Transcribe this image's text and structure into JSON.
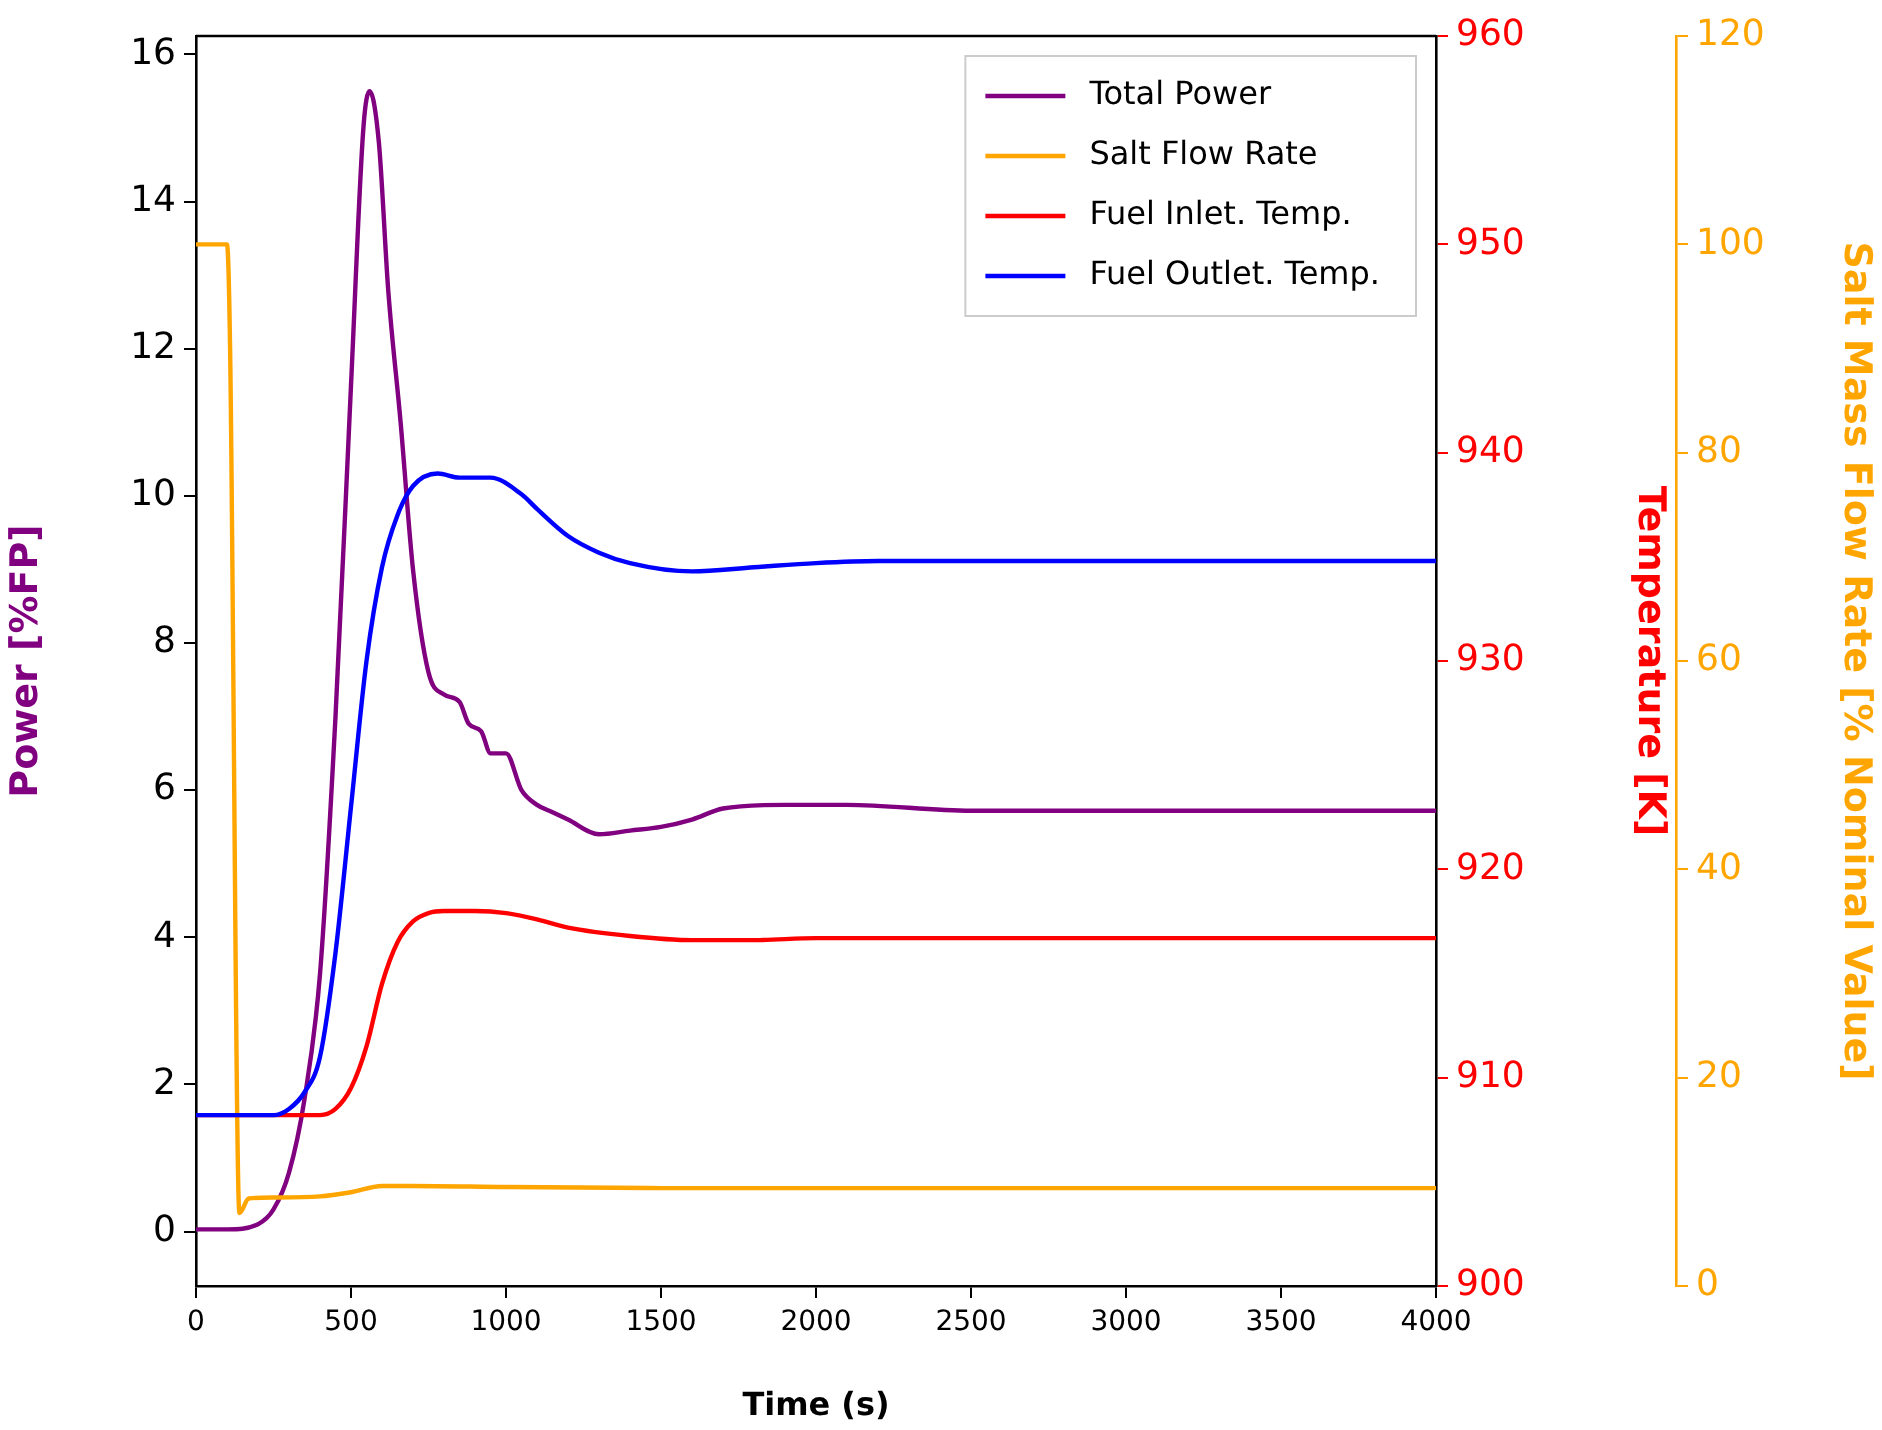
{
  "chart_data": {
    "type": "line",
    "xlabel": "Time (s)",
    "ylabel": "Power [%FP]",
    "y2label": "Temperature [K]",
    "y3label": "Salt Mass Flow Rate [% Nominal Value]",
    "xlim": [
      0,
      4000
    ],
    "xticks": [
      0,
      500,
      1000,
      1500,
      2000,
      2500,
      3000,
      3500,
      4000
    ],
    "ylim": [
      -0.74,
      16.25
    ],
    "yticks": [
      0,
      2,
      4,
      6,
      8,
      10,
      12,
      14,
      16
    ],
    "y2lim": [
      900,
      960
    ],
    "y2ticks": [
      900,
      910,
      920,
      930,
      940,
      950,
      960
    ],
    "y3lim": [
      0,
      120
    ],
    "y3ticks": [
      0,
      20,
      40,
      60,
      80,
      100,
      120
    ],
    "legend": "top right",
    "grid": false,
    "marker": "none",
    "line_style": "solid",
    "series": [
      {
        "name": "Total Power",
        "color": "#800080",
        "axis": "y",
        "x": [
          0,
          100,
          200,
          250,
          300,
          350,
          400,
          450,
          500,
          540,
          560,
          590,
          620,
          660,
          700,
          750,
          800,
          850,
          880,
          920,
          950,
          1000,
          1050,
          1100,
          1150,
          1200,
          1300,
          1400,
          1500,
          1600,
          1700,
          1900,
          2100,
          2500,
          4000
        ],
        "values": [
          0.03,
          0.03,
          0.1,
          0.3,
          0.8,
          1.8,
          3.5,
          7,
          11.5,
          15,
          15.5,
          14.8,
          12.8,
          11,
          9,
          7.6,
          7.3,
          7.2,
          6.9,
          6.8,
          6.5,
          6.5,
          6,
          5.8,
          5.7,
          5.6,
          5.4,
          5.45,
          5.5,
          5.6,
          5.75,
          5.8,
          5.8,
          5.72,
          5.72
        ]
      },
      {
        "name": "Salt Flow Rate",
        "color": "#ffa500",
        "axis": "y3",
        "x": [
          0,
          100,
          110,
          140,
          170,
          250,
          400,
          500,
          600,
          700,
          1000,
          1500,
          4000
        ],
        "values": [
          100,
          100,
          90,
          7,
          8.4,
          8.5,
          8.6,
          9,
          9.6,
          9.6,
          9.5,
          9.4,
          9.4
        ]
      },
      {
        "name": "Fuel Inlet. Temp.",
        "color": "#ff0000",
        "axis": "y2",
        "x": [
          0,
          400,
          450,
          500,
          550,
          600,
          650,
          700,
          750,
          800,
          850,
          900,
          1000,
          1100,
          1200,
          1400,
          1600,
          1800,
          2000,
          4000
        ],
        "values": [
          908.2,
          908.2,
          908.5,
          909.5,
          911.5,
          914.5,
          916.5,
          917.5,
          917.9,
          918,
          918,
          918,
          917.9,
          917.6,
          917.2,
          916.8,
          916.6,
          916.6,
          916.7,
          916.7
        ]
      },
      {
        "name": "Fuel Outlet. Temp.",
        "color": "#0000ff",
        "axis": "y2",
        "x": [
          0,
          250,
          300,
          350,
          400,
          450,
          500,
          550,
          600,
          650,
          700,
          780,
          850,
          950,
          1050,
          1100,
          1200,
          1300,
          1400,
          1600,
          1800,
          2000,
          2200,
          4000
        ],
        "values": [
          908.2,
          908.2,
          908.5,
          909.3,
          911,
          916,
          923,
          930,
          934.5,
          937,
          938.4,
          939,
          938.8,
          938.8,
          938,
          937.3,
          936,
          935.2,
          934.7,
          934.3,
          934.5,
          934.7,
          934.8,
          934.8
        ]
      }
    ]
  }
}
